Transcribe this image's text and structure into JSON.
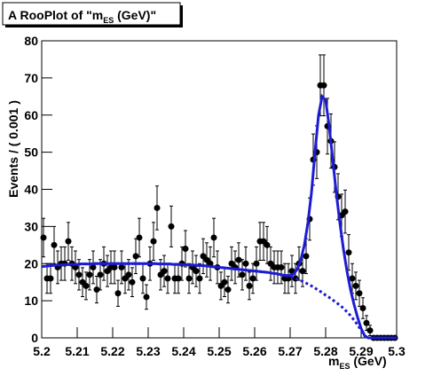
{
  "chart_data": {
    "type": "rooplot",
    "title": [
      "A RooPlot of \"m",
      "ES",
      " (GeV)\""
    ],
    "x_label": [
      "m",
      "ES",
      " (GeV)"
    ],
    "y_label": "Events / ( 0.001 )",
    "xlim": [
      5.2,
      5.3
    ],
    "ylim": [
      0,
      80
    ],
    "xticks": [
      5.2,
      5.21,
      5.22,
      5.23,
      5.24,
      5.25,
      5.26,
      5.27,
      5.28,
      5.29,
      5.3
    ],
    "yticks": [
      0,
      10,
      20,
      30,
      40,
      50,
      60,
      70,
      80
    ],
    "series": [
      {
        "style": "points",
        "color": "#000000",
        "x": [
          5.2005,
          5.2015,
          5.2025,
          5.2035,
          5.2045,
          5.2055,
          5.2065,
          5.2075,
          5.2085,
          5.2095,
          5.2105,
          5.2115,
          5.2125,
          5.2135,
          5.2145,
          5.2155,
          5.2165,
          5.2175,
          5.2185,
          5.2195,
          5.2205,
          5.2215,
          5.2225,
          5.2235,
          5.2245,
          5.2255,
          5.2265,
          5.2275,
          5.2285,
          5.2295,
          5.2305,
          5.2315,
          5.2325,
          5.2335,
          5.2345,
          5.2355,
          5.2365,
          5.2375,
          5.2385,
          5.2395,
          5.2405,
          5.2415,
          5.2425,
          5.2435,
          5.2445,
          5.2455,
          5.2465,
          5.2475,
          5.2485,
          5.2495,
          5.2505,
          5.2515,
          5.2525,
          5.2535,
          5.2545,
          5.2555,
          5.2565,
          5.2575,
          5.2585,
          5.2595,
          5.2605,
          5.2615,
          5.2625,
          5.2635,
          5.2645,
          5.2655,
          5.2665,
          5.2675,
          5.2685,
          5.2695,
          5.2705,
          5.2715,
          5.2725,
          5.2735,
          5.2745,
          5.2755,
          5.2765,
          5.2775,
          5.2785,
          5.2795,
          5.2805,
          5.2815,
          5.2825,
          5.2835,
          5.2845,
          5.2855,
          5.2865,
          5.2875,
          5.2885,
          5.2895,
          5.2905,
          5.2915,
          5.2925,
          5.2935,
          5.2945,
          5.2955,
          5.2965,
          5.2975,
          5.2985,
          5.2995
        ],
        "values": [
          27,
          16,
          16,
          25,
          19,
          20,
          20,
          26,
          20,
          19,
          17,
          15,
          14,
          17,
          19,
          13,
          17,
          20,
          18,
          19,
          19,
          12,
          19,
          16,
          17,
          15,
          22,
          27,
          16,
          11,
          20,
          26,
          35,
          17,
          18,
          16,
          30,
          16,
          16,
          20,
          24,
          16,
          19,
          18,
          16,
          22,
          21,
          20,
          27,
          19,
          14,
          15,
          13,
          20,
          19,
          21,
          17,
          20,
          14,
          16,
          20,
          26,
          26,
          25,
          20,
          19,
          19,
          19,
          16,
          16,
          18,
          16,
          20,
          18,
          22,
          32,
          48,
          50,
          68,
          68,
          57,
          53,
          46,
          38,
          33,
          34,
          23,
          16,
          14,
          12,
          8,
          4,
          2,
          0,
          0,
          0,
          0,
          0,
          0,
          0
        ],
        "errors": [
          5.2,
          4,
          4,
          5,
          4.4,
          4.5,
          4.5,
          5.1,
          4.5,
          4.4,
          4.1,
          3.9,
          3.7,
          4.1,
          4.4,
          3.6,
          4.1,
          4.5,
          4.2,
          4.4,
          4.4,
          3.5,
          4.4,
          4,
          4.1,
          3.9,
          4.7,
          5.2,
          4,
          3.3,
          4.5,
          5.1,
          5.9,
          4.1,
          4.2,
          4,
          5.5,
          4,
          4,
          4.5,
          4.9,
          4,
          4.4,
          4.2,
          4,
          4.7,
          4.6,
          4.5,
          5.2,
          4.4,
          3.7,
          3.9,
          3.6,
          4.5,
          4.4,
          4.6,
          4.1,
          4.5,
          3.7,
          4,
          4.5,
          5.1,
          5.1,
          5,
          4.5,
          4.4,
          4.4,
          4.4,
          4,
          4,
          4.2,
          4,
          4.5,
          4.2,
          4.7,
          5.7,
          6.9,
          7.1,
          8.2,
          8.2,
          7.5,
          7.3,
          6.8,
          6.2,
          5.7,
          5.8,
          4.8,
          4,
          3.7,
          3.5,
          2.8,
          2,
          1.4,
          0,
          0,
          0,
          0,
          0,
          0,
          0
        ]
      },
      {
        "style": "solid",
        "color": "#1c1cd4",
        "x": [
          5.2,
          5.201,
          5.202,
          5.203,
          5.204,
          5.205,
          5.206,
          5.207,
          5.208,
          5.209,
          5.21,
          5.211,
          5.212,
          5.213,
          5.214,
          5.215,
          5.216,
          5.217,
          5.218,
          5.219,
          5.22,
          5.221,
          5.222,
          5.223,
          5.224,
          5.225,
          5.226,
          5.227,
          5.228,
          5.229,
          5.23,
          5.231,
          5.232,
          5.233,
          5.234,
          5.235,
          5.236,
          5.237,
          5.238,
          5.239,
          5.24,
          5.241,
          5.242,
          5.243,
          5.244,
          5.245,
          5.246,
          5.247,
          5.248,
          5.249,
          5.25,
          5.251,
          5.252,
          5.253,
          5.254,
          5.255,
          5.256,
          5.257,
          5.258,
          5.259,
          5.26,
          5.261,
          5.262,
          5.263,
          5.264,
          5.265,
          5.266,
          5.267,
          5.268,
          5.269,
          5.27,
          5.271,
          5.272,
          5.273,
          5.274,
          5.275,
          5.276,
          5.277,
          5.278,
          5.279,
          5.28,
          5.281,
          5.282,
          5.283,
          5.284,
          5.285,
          5.286,
          5.287,
          5.288,
          5.289,
          5.29,
          5.291,
          5.292,
          5.293,
          5.294,
          5.295,
          5.296,
          5.297,
          5.298,
          5.299,
          5.3
        ],
        "values": [
          19.2,
          19.3,
          19.4,
          19.5,
          19.6,
          19.6,
          19.7,
          19.7,
          19.8,
          19.8,
          19.8,
          19.9,
          19.9,
          19.9,
          19.9,
          20,
          20,
          20,
          20,
          20,
          20,
          20,
          20,
          20,
          20,
          20,
          20,
          20,
          20,
          20,
          20,
          20,
          20,
          19.9,
          19.9,
          19.9,
          19.9,
          19.8,
          19.8,
          19.8,
          19.7,
          19.7,
          19.6,
          19.6,
          19.5,
          19.5,
          19.4,
          19.3,
          19.2,
          19.1,
          19,
          18.9,
          18.8,
          18.7,
          18.6,
          18.5,
          18.4,
          18.3,
          18.2,
          18.1,
          18,
          17.9,
          17.8,
          17.7,
          17.6,
          17.4,
          17.3,
          17.1,
          16.9,
          16.8,
          16.8,
          17.2,
          18.5,
          21,
          25,
          31,
          39,
          50,
          60,
          65,
          64,
          57,
          48,
          39,
          31,
          24,
          18,
          13,
          9,
          5.5,
          2.5,
          0.6,
          0,
          0,
          0,
          0,
          0,
          0,
          0,
          0,
          0
        ]
      },
      {
        "style": "dashed",
        "color": "#1c1cd4",
        "x": [
          5.2,
          5.201,
          5.202,
          5.203,
          5.204,
          5.205,
          5.206,
          5.207,
          5.208,
          5.209,
          5.21,
          5.211,
          5.212,
          5.213,
          5.214,
          5.215,
          5.216,
          5.217,
          5.218,
          5.219,
          5.22,
          5.221,
          5.222,
          5.223,
          5.224,
          5.225,
          5.226,
          5.227,
          5.228,
          5.229,
          5.23,
          5.231,
          5.232,
          5.233,
          5.234,
          5.235,
          5.236,
          5.237,
          5.238,
          5.239,
          5.24,
          5.241,
          5.242,
          5.243,
          5.244,
          5.245,
          5.246,
          5.247,
          5.248,
          5.249,
          5.25,
          5.251,
          5.252,
          5.253,
          5.254,
          5.255,
          5.256,
          5.257,
          5.258,
          5.259,
          5.26,
          5.261,
          5.262,
          5.263,
          5.264,
          5.265,
          5.266,
          5.267,
          5.268,
          5.269,
          5.27,
          5.271,
          5.272,
          5.273,
          5.274,
          5.275,
          5.276,
          5.277,
          5.278,
          5.279,
          5.28,
          5.281,
          5.282,
          5.283,
          5.284,
          5.285,
          5.286,
          5.287,
          5.288,
          5.289,
          5.29,
          5.291,
          5.292,
          5.293,
          5.294,
          5.295,
          5.296,
          5.297,
          5.298,
          5.299,
          5.3
        ],
        "values": [
          19.2,
          19.3,
          19.4,
          19.5,
          19.6,
          19.6,
          19.7,
          19.7,
          19.8,
          19.8,
          19.8,
          19.9,
          19.9,
          19.9,
          19.9,
          20,
          20,
          20,
          20,
          20,
          20,
          20,
          20,
          20,
          20,
          20,
          20,
          20,
          20,
          20,
          20,
          20,
          20,
          19.9,
          19.9,
          19.9,
          19.9,
          19.8,
          19.8,
          19.8,
          19.7,
          19.7,
          19.6,
          19.6,
          19.5,
          19.5,
          19.4,
          19.3,
          19.2,
          19.1,
          19,
          18.9,
          18.8,
          18.7,
          18.6,
          18.5,
          18.4,
          18.3,
          18.2,
          18.1,
          18,
          17.9,
          17.8,
          17.7,
          17.6,
          17.4,
          17.3,
          17.1,
          16.9,
          16.7,
          16.5,
          16.2,
          15.8,
          15.4,
          15,
          14.5,
          14,
          13.4,
          12.8,
          12.2,
          11.5,
          10.9,
          10.2,
          9.5,
          8.8,
          8,
          7,
          6,
          4.8,
          3.5,
          2,
          0.5,
          0,
          0,
          0,
          0,
          0,
          0,
          0,
          0,
          0
        ]
      }
    ]
  }
}
